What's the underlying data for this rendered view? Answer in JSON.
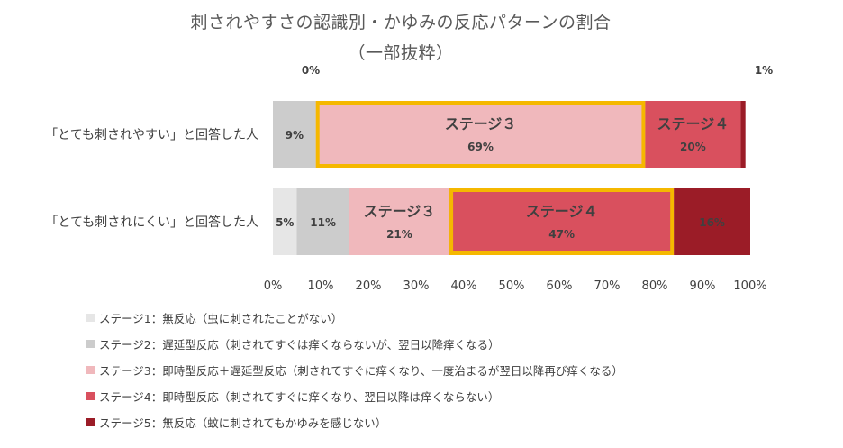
{
  "chart_data": {
    "type": "bar",
    "orientation": "horizontal",
    "stacked": "percent",
    "title": "刺されやすさの認識別・かゆみの反応パターンの割合",
    "subtitle": "（一部抜粋）",
    "categories": [
      "「とても刺されやすい」と回答した人",
      "「とても刺されにくい」と回答した人"
    ],
    "series": [
      {
        "name": "ステージ1：無反応（虫に刺されたことがない）",
        "stage": "ステージ１",
        "color": "#e6e6e6",
        "values": [
          0,
          5
        ],
        "labels": [
          "0%",
          "5%"
        ]
      },
      {
        "name": "ステージ2：遅延型反応（刺されてすぐは痒くならないが、翌日以降痒くなる）",
        "stage": "ステージ２",
        "color": "#cccccc",
        "values": [
          9,
          11
        ],
        "labels": [
          "9%",
          "11%"
        ]
      },
      {
        "name": "ステージ3：即時型反応＋遅延型反応（刺されてすぐに痒くなり、一度治まるが翌日以降再び痒くなる）",
        "stage": "ステージ３",
        "color": "#f0b8bc",
        "values": [
          69,
          21
        ],
        "labels": [
          "69%",
          "21%"
        ]
      },
      {
        "name": "ステージ4：即時型反応（刺されてすぐに痒くなり、翌日以降は痒くならない）",
        "stage": "ステージ４",
        "color": "#d9505e",
        "values": [
          20,
          47
        ],
        "labels": [
          "20%",
          "47%"
        ]
      },
      {
        "name": "ステージ5：無反応（蚊に刺されてもかゆみを感じない）",
        "stage": "ステージ５",
        "color": "#9b1c27",
        "values": [
          1,
          16
        ],
        "labels": [
          "1%",
          "16%"
        ]
      }
    ],
    "segment_names": {
      "row0": [
        "",
        "",
        "ステージ３",
        "ステージ４",
        ""
      ],
      "row1": [
        "",
        "",
        "ステージ３",
        "ステージ４",
        ""
      ]
    },
    "highlight": [
      {
        "row": 0,
        "series": 2
      },
      {
        "row": 1,
        "series": 3
      }
    ],
    "highlight_color": "#f5b800",
    "xlim": [
      0,
      100
    ],
    "xticks": [
      "0%",
      "10%",
      "20%",
      "30%",
      "40%",
      "50%",
      "60%",
      "70%",
      "80%",
      "90%",
      "100%"
    ],
    "legend_position": "bottom-left",
    "grid": false
  },
  "legend": [
    {
      "label": "ステージ1：無反応（虫に刺されたことがない）",
      "color": "#e6e6e6"
    },
    {
      "label": "ステージ2：遅延型反応（刺されてすぐは痒くならないが、翌日以降痒くなる）",
      "color": "#cccccc"
    },
    {
      "label": "ステージ3：即時型反応＋遅延型反応（刺されてすぐに痒くなり、一度治まるが翌日以降再び痒くなる）",
      "color": "#f0b8bc"
    },
    {
      "label": "ステージ4：即時型反応（刺されてすぐに痒くなり、翌日以降は痒くならない）",
      "color": "#d9505e"
    },
    {
      "label": "ステージ5：無反応（蚊に刺されてもかゆみを感じない）",
      "color": "#9b1c27"
    }
  ]
}
